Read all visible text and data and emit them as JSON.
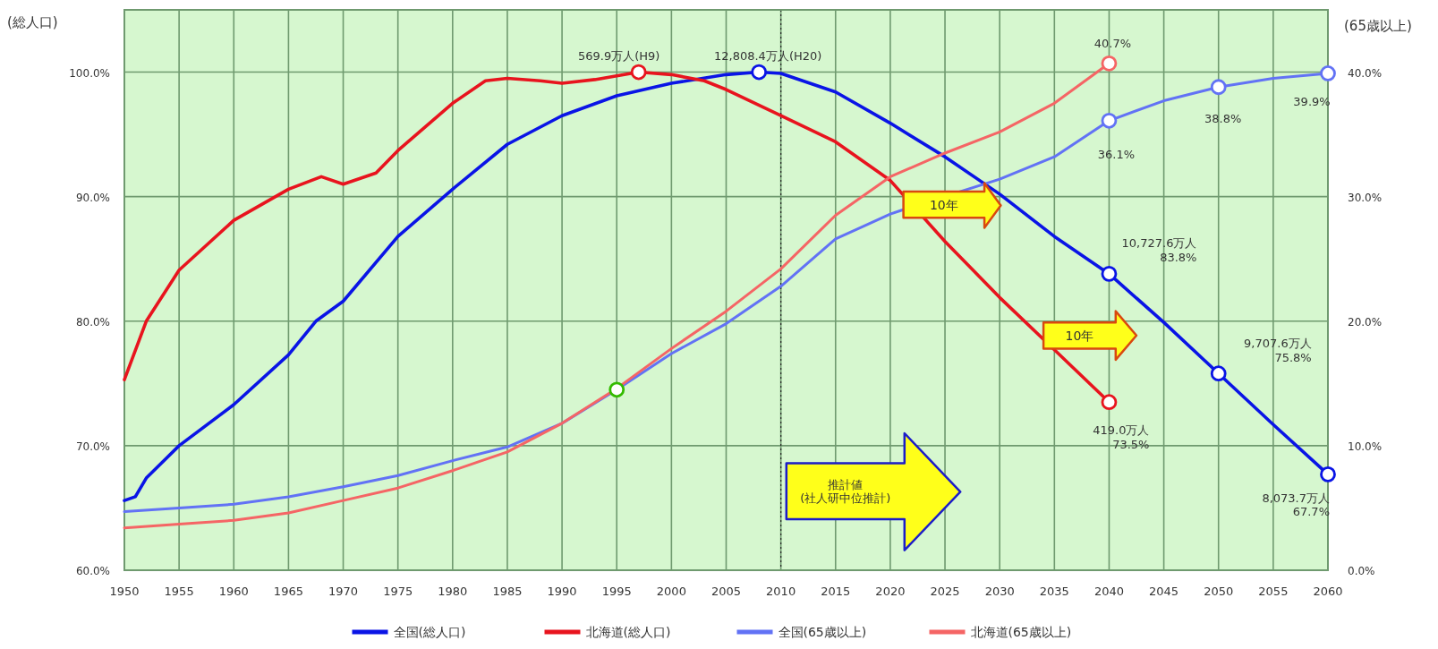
{
  "chart_data": {
    "type": "line",
    "ylabel": "(総人口)",
    "y2label": "(65歳以上)",
    "xlim": [
      1950,
      2060
    ],
    "xticks": [
      1950,
      1955,
      1960,
      1965,
      1970,
      1975,
      1980,
      1985,
      1990,
      1995,
      2000,
      2005,
      2010,
      2015,
      2020,
      2025,
      2030,
      2035,
      2040,
      2045,
      2050,
      2055,
      2060
    ],
    "ylim": [
      60,
      105
    ],
    "yticks": [
      {
        "value": 60,
        "label": "60.0%"
      },
      {
        "value": 70,
        "label": "70.0%"
      },
      {
        "value": 80,
        "label": "80.0%"
      },
      {
        "value": 90,
        "label": "90.0%"
      },
      {
        "value": 100,
        "label": "100.0%"
      }
    ],
    "y2lim": [
      0,
      45
    ],
    "y2ticks": [
      {
        "value": 0,
        "label": "0.0%"
      },
      {
        "value": 10,
        "label": "10.0%"
      },
      {
        "value": 20,
        "label": "20.0%"
      },
      {
        "value": 30,
        "label": "30.0%"
      },
      {
        "value": 40,
        "label": "40.0%"
      }
    ],
    "grid": true,
    "legend": "bottom",
    "marker": "none",
    "line_style": "solid",
    "ref_lines": [
      {
        "axis": "x",
        "value": 2010,
        "color": "#222222",
        "line_style": "dotted"
      }
    ],
    "series": [
      {
        "name": "全国(総人口)",
        "color": "#0a14e6",
        "x": [
          1950,
          1951,
          1952,
          1955,
          1960,
          1965,
          1967.5,
          1970,
          1975,
          1980,
          1985,
          1990,
          1995,
          2000,
          2005,
          2008,
          2010,
          2015,
          2020,
          2025,
          2030,
          2035,
          2040,
          2045,
          2050,
          2055,
          2060
        ],
        "values": [
          65.6,
          65.9,
          67.4,
          70.0,
          73.3,
          77.3,
          80.0,
          81.6,
          86.8,
          90.6,
          94.2,
          96.5,
          98.1,
          99.1,
          99.8,
          100,
          99.9,
          98.4,
          95.9,
          93.2,
          90.2,
          86.8,
          83.8,
          79.9,
          75.8,
          71.7,
          67.7
        ]
      },
      {
        "name": "北海道(総人口)",
        "color": "#e8141e",
        "x": [
          1950,
          1952,
          1955,
          1957,
          1960,
          1965,
          1968,
          1970,
          1973,
          1975,
          1980,
          1983,
          1985,
          1988,
          1990,
          1993,
          1997,
          2000,
          2003,
          2005,
          2010,
          2015,
          2020,
          2025,
          2030,
          2035,
          2040
        ],
        "values": [
          75.3,
          80.0,
          84.1,
          85.7,
          88.1,
          90.6,
          91.6,
          91.0,
          91.9,
          93.7,
          97.5,
          99.3,
          99.5,
          99.3,
          99.1,
          99.4,
          100,
          99.8,
          99.3,
          98.6,
          96.5,
          94.4,
          91.3,
          86.4,
          81.9,
          77.7,
          73.5
        ]
      },
      {
        "name": "全国(65歳以上)",
        "color": "#6272f5",
        "axis": "y2",
        "x": [
          1950,
          1955,
          1960,
          1965,
          1970,
          1975,
          1980,
          1985,
          1990,
          1995,
          2000,
          2005,
          2010,
          2015,
          2020,
          2021,
          2030,
          2035,
          2040,
          2045,
          2050,
          2055,
          2060
        ],
        "values": [
          4.7,
          5.0,
          5.3,
          5.9,
          6.7,
          7.6,
          8.8,
          9.9,
          11.8,
          14.5,
          17.4,
          19.8,
          22.8,
          26.6,
          28.6,
          28.9,
          31.4,
          33.2,
          36.1,
          37.7,
          38.8,
          39.5,
          39.9
        ]
      },
      {
        "name": "北海道(65歳以上)",
        "color": "#f56565",
        "axis": "y2",
        "x": [
          1950,
          1955,
          1960,
          1965,
          1970,
          1975,
          1980,
          1985,
          1990,
          1995,
          2000,
          2005,
          2010,
          2015,
          2020,
          2025,
          2030,
          2035,
          2040
        ],
        "values": [
          3.4,
          3.7,
          4.0,
          4.6,
          5.6,
          6.6,
          8.0,
          9.5,
          11.8,
          14.6,
          17.8,
          20.8,
          24.2,
          28.5,
          31.6,
          33.5,
          35.2,
          37.5,
          40.7
        ]
      },
      {
        "type": "scatter",
        "marker": "circle",
        "color": "#0a14e6",
        "x": [
          2008,
          2040,
          2050,
          2060
        ],
        "values": [
          100,
          83.8,
          75.8,
          67.7
        ]
      },
      {
        "type": "scatter",
        "marker": "circle",
        "color": "#e8141e",
        "x": [
          1997,
          2040
        ],
        "values": [
          100,
          73.5
        ]
      },
      {
        "type": "scatter",
        "marker": "circle",
        "color": "#6272f5",
        "axis": "y2",
        "x": [
          2040,
          2050,
          2060
        ],
        "values": [
          36.1,
          38.8,
          39.9
        ]
      },
      {
        "type": "scatter",
        "marker": "circle",
        "color": "#f56565",
        "axis": "y2",
        "x": [
          2040
        ],
        "values": [
          40.7
        ]
      },
      {
        "type": "scatter",
        "marker": "circle",
        "color": "#33bb00",
        "x": [
          1995
        ],
        "values": [
          74.5
        ]
      }
    ],
    "annotations": [
      {
        "text": "569.9万人(H9)",
        "x": 1997,
        "y": 100
      },
      {
        "text": "12,808.4万人(H20)",
        "x": 2008,
        "y": 100
      },
      {
        "text": "40.7%",
        "x": 2040,
        "y": 100.7
      },
      {
        "text": "36.1%",
        "x": 2040,
        "y": 96.1
      },
      {
        "text": "38.8%",
        "x": 2050,
        "y": 98.8
      },
      {
        "text": "39.9%",
        "x": 2060,
        "y": 99.9
      },
      {
        "text": "10,727.6万人\n83.8%",
        "x": 2040,
        "y": 83.8
      },
      {
        "text": "9,707.6万人\n75.8%",
        "x": 2050,
        "y": 75.8
      },
      {
        "text": "8,073.7万人\n67.7%",
        "x": 2060,
        "y": 67.7
      },
      {
        "text": "419.0万人\n73.5%",
        "x": 2040,
        "y": 73.5
      },
      "10年",
      "10年",
      "推計値\n(社人研中位推計)"
    ]
  }
}
